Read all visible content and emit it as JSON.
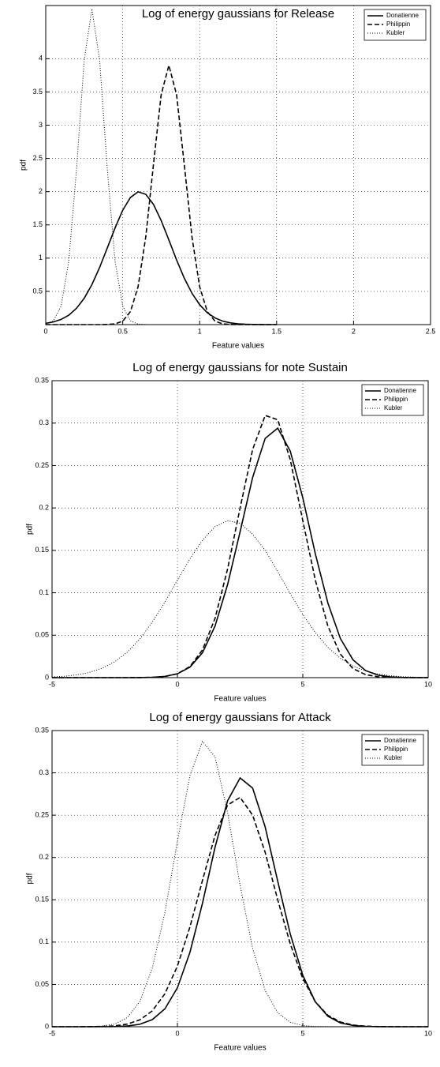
{
  "chart_data": [
    {
      "type": "line",
      "title": "Log of energy gaussians for Release",
      "xlabel": "Feature values",
      "ylabel": "pdf",
      "x": [
        0,
        0.05,
        0.1,
        0.15,
        0.2,
        0.25,
        0.3,
        0.35,
        0.4,
        0.45,
        0.5,
        0.55,
        0.6,
        0.65,
        0.7,
        0.75,
        0.8,
        0.85,
        0.9,
        0.95,
        1.0,
        1.05,
        1.1,
        1.15,
        1.2,
        1.25,
        1.3,
        1.35,
        1.4,
        1.45,
        1.5
      ],
      "series": [
        {
          "name": "Donatienne",
          "color": "#000000",
          "dash": "solid",
          "values": [
            0.019,
            0.04,
            0.078,
            0.142,
            0.245,
            0.396,
            0.602,
            0.859,
            1.153,
            1.452,
            1.72,
            1.912,
            1.998,
            1.96,
            1.808,
            1.565,
            1.274,
            0.973,
            0.699,
            0.472,
            0.299,
            0.178,
            0.1,
            0.052,
            0.026,
            0.012,
            0.005,
            0.002,
            0.001,
            0,
            0
          ]
        },
        {
          "name": "Philippin",
          "color": "#000000",
          "dash": "dashed",
          "values": [
            0,
            0,
            0,
            0,
            0,
            0,
            0,
            0,
            0.002,
            0.011,
            0.051,
            0.194,
            0.57,
            1.32,
            2.41,
            3.46,
            3.9,
            3.46,
            2.41,
            1.32,
            0.57,
            0.194,
            0.051,
            0.011,
            0.002,
            0,
            0,
            0,
            0,
            0,
            0
          ]
        },
        {
          "name": "Kubler",
          "color": "#000000",
          "dash": "dotted",
          "values": [
            0.008,
            0.057,
            0.28,
            0.96,
            2.34,
            3.98,
            4.75,
            3.98,
            2.34,
            0.96,
            0.28,
            0.057,
            0.008,
            0.001,
            0,
            0,
            0,
            0,
            0,
            0,
            0,
            0,
            0,
            0,
            0,
            0,
            0,
            0,
            0,
            0,
            0
          ]
        }
      ],
      "xlim": [
        0,
        2.5
      ],
      "xticks": [
        0,
        0.5,
        1,
        1.5,
        2,
        2.5
      ],
      "ylim": [
        0,
        4.8
      ],
      "yticks": [
        0.5,
        1,
        1.5,
        2,
        2.5,
        3,
        3.5,
        4
      ],
      "grid": true,
      "legend": "top-right"
    },
    {
      "type": "line",
      "title": "Log of energy gaussians for note Sustain",
      "xlabel": "Feature values",
      "ylabel": "pdf",
      "x": [
        -5,
        -4.5,
        -4,
        -3.5,
        -3,
        -2.5,
        -2,
        -1.5,
        -1,
        -0.5,
        0,
        0.5,
        1,
        1.5,
        2,
        2.5,
        3,
        3.5,
        4,
        4.5,
        5,
        5.5,
        6,
        6.5,
        7,
        7.5,
        8,
        8.5,
        9,
        9.5,
        10
      ],
      "series": [
        {
          "name": "Donatienne",
          "color": "#000000",
          "dash": "solid",
          "values": [
            0,
            0,
            0,
            0,
            0,
            0,
            0,
            0.0001,
            0.0004,
            0.0015,
            0.0045,
            0.0124,
            0.0294,
            0.0608,
            0.1096,
            0.172,
            0.236,
            0.282,
            0.294,
            0.267,
            0.212,
            0.146,
            0.088,
            0.046,
            0.0211,
            0.0084,
            0.0029,
            0.0009,
            0.0002,
            0.0001,
            0
          ]
        },
        {
          "name": "Philippin",
          "color": "#000000",
          "dash": "dashed",
          "values": [
            0,
            0,
            0,
            0,
            0,
            0,
            0,
            0.0001,
            0.0003,
            0.0013,
            0.0045,
            0.0131,
            0.0327,
            0.0698,
            0.128,
            0.2,
            0.269,
            0.309,
            0.304,
            0.257,
            0.185,
            0.115,
            0.0607,
            0.0276,
            0.0107,
            0.0036,
            0.001,
            0.0003,
            0.0001,
            0,
            0
          ]
        },
        {
          "name": "Kubler",
          "color": "#000000",
          "dash": "dotted",
          "values": [
            0.0008,
            0.0017,
            0.0033,
            0.0062,
            0.0111,
            0.0187,
            0.03,
            0.0455,
            0.0655,
            0.089,
            0.1149,
            0.14,
            0.162,
            0.178,
            0.185,
            0.182,
            0.169,
            0.15,
            0.125,
            0.099,
            0.0745,
            0.053,
            0.0357,
            0.0228,
            0.0138,
            0.0079,
            0.0043,
            0.0022,
            0.0011,
            0.0005,
            0.0002
          ]
        }
      ],
      "xlim": [
        -5,
        10
      ],
      "xticks": [
        -5,
        0,
        5,
        10
      ],
      "ylim": [
        0,
        0.35
      ],
      "yticks": [
        0,
        0.05,
        0.1,
        0.15,
        0.2,
        0.25,
        0.3,
        0.35
      ],
      "grid": true,
      "legend": "top-right"
    },
    {
      "type": "line",
      "title": "Log of energy gaussians for Attack",
      "xlabel": "Feature values",
      "ylabel": "pdf",
      "x": [
        -5,
        -4.5,
        -4,
        -3.5,
        -3,
        -2.5,
        -2,
        -1.5,
        -1,
        -0.5,
        0,
        0.5,
        1,
        1.5,
        2,
        2.5,
        3,
        3.5,
        4,
        4.5,
        5,
        5.5,
        6,
        6.5,
        7,
        7.5,
        8,
        8.5,
        9,
        9.5,
        10
      ],
      "series": [
        {
          "name": "Donatienne",
          "color": "#000000",
          "dash": "solid",
          "values": [
            0,
            0,
            0,
            0,
            0.0001,
            0.0002,
            0.0009,
            0.0029,
            0.0084,
            0.0211,
            0.046,
            0.088,
            0.146,
            0.212,
            0.267,
            0.294,
            0.282,
            0.236,
            0.172,
            0.1096,
            0.0608,
            0.0294,
            0.0124,
            0.0045,
            0.0015,
            0.0004,
            0.0001,
            0,
            0,
            0,
            0
          ]
        },
        {
          "name": "Philippin",
          "color": "#000000",
          "dash": "dashed",
          "values": [
            0,
            0,
            0,
            0.0001,
            0.0003,
            0.001,
            0.0031,
            0.0081,
            0.0188,
            0.0389,
            0.0717,
            0.118,
            0.173,
            0.226,
            0.262,
            0.271,
            0.25,
            0.206,
            0.15,
            0.098,
            0.0569,
            0.0294,
            0.0135,
            0.0056,
            0.002,
            0.0007,
            0.0002,
            0.0001,
            0,
            0,
            0
          ]
        },
        {
          "name": "Kubler",
          "color": "#000000",
          "dash": "dotted",
          "values": [
            0,
            0,
            0,
            0.0002,
            0.0008,
            0.0032,
            0.0107,
            0.0298,
            0.0694,
            0.135,
            0.219,
            0.297,
            0.337,
            0.319,
            0.253,
            0.167,
            0.0925,
            0.0427,
            0.0165,
            0.0053,
            0.0014,
            0.0003,
            0.0001,
            0,
            0,
            0,
            0,
            0,
            0,
            0,
            0
          ]
        }
      ],
      "xlim": [
        -5,
        10
      ],
      "xticks": [
        -5,
        0,
        5,
        10
      ],
      "ylim": [
        0,
        0.35
      ],
      "yticks": [
        0,
        0.05,
        0.1,
        0.15,
        0.2,
        0.25,
        0.3,
        0.35
      ],
      "grid": true,
      "legend": "top-right"
    }
  ]
}
